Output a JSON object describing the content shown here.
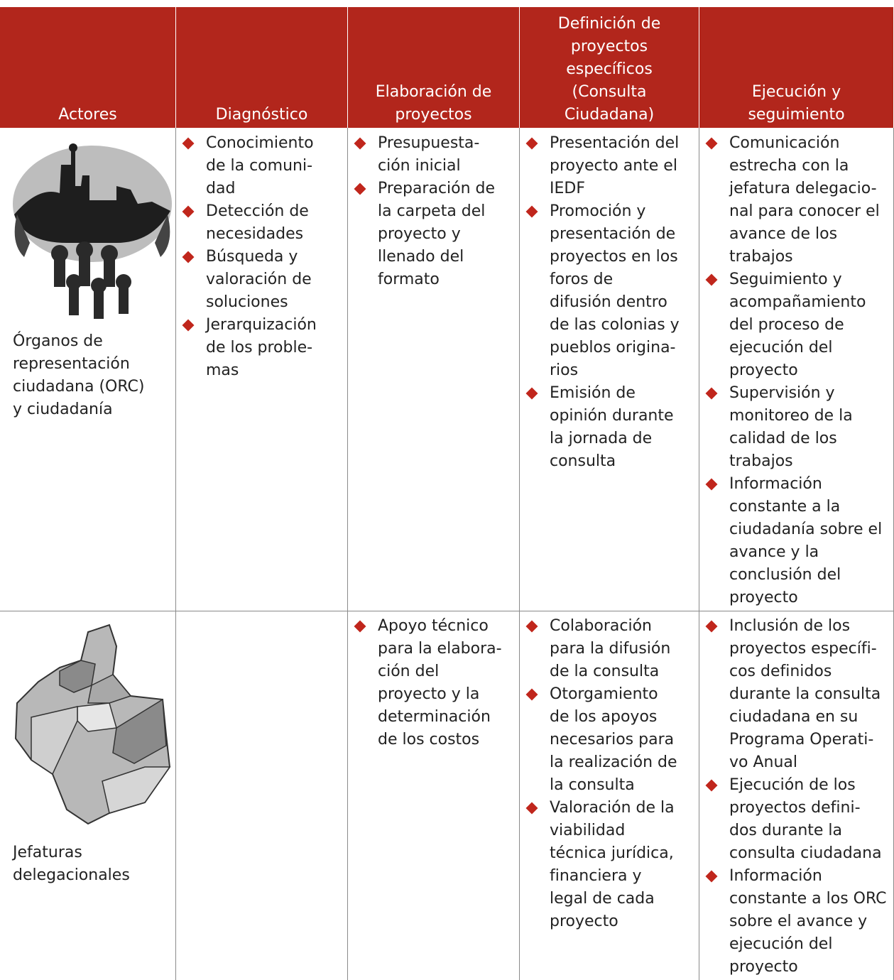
{
  "table": {
    "header": [
      "Actores",
      "Diagnóstico",
      "Elaboración de\nproyectos",
      "Definición de\nproyectos\nespecíficos\n(Consulta\nCiudadana)",
      "Ejecución y\nseguimiento"
    ],
    "rows": [
      {
        "actor": "Órganos de\nrepresentación\nciudadana (ORC)\ny ciudadanía",
        "cells": [
          [
            "Conocimiento\nde la comuni-\ndad",
            "Detección de\nnecesidades",
            "Búsqueda y\nvaloración de\nsoluciones",
            "Jerarquización\nde los proble-\nmas"
          ],
          [
            "Presupuesta-\nción inicial",
            "Preparación de\nla carpeta del\nproyecto y\nllenado del\nformato"
          ],
          [
            "Presentación del\nproyecto ante el\nIEDF",
            "Promoción y\npresentación de\nproyectos en los\nforos de\ndifusión dentro\nde las colonias y\npueblos origina-\nrios",
            "Emisión de\nopinión durante\nla jornada de\nconsulta"
          ],
          [
            "Comunicación\nestrecha con la\njefatura delegacio-\nnal para conocer el\navance de los\ntrabajos",
            "Seguimiento y\nacompañamiento\ndel proceso de\nejecución del\nproyecto",
            "Supervisión y\nmonitoreo de la\ncalidad de los\ntrabajos",
            "Información\nconstante a la\nciudadanía sobre el\navance y la\nconclusión del\nproyecto"
          ]
        ]
      },
      {
        "actor": "Jefaturas\ndelegacionales",
        "cells": [
          [],
          [
            "Apoyo técnico\npara la elabora-\nción del\nproyecto y la\ndeterminación\nde los costos"
          ],
          [
            "Colaboración\npara la difusión\nde la consulta",
            "Otorgamiento\nde los apoyos\nnecesarios para\nla realización de\nla consulta",
            "Valoración de la\nviabilidad\ntécnica jurídica,\nfinanciera y\nlegal de cada\nproyecto"
          ],
          [
            "Inclusión de los\nproyectos específi-\ncos definidos\ndurante la consulta\nciudadana en su\nPrograma Operati-\nvo Anual",
            "Ejecución de los\nproyectos defini-\ndos durante la\nconsulta ciudadana",
            "Información\nconstante a los ORC\nsobre el avance y\nejecución del\nproyecto"
          ]
        ]
      }
    ]
  }
}
